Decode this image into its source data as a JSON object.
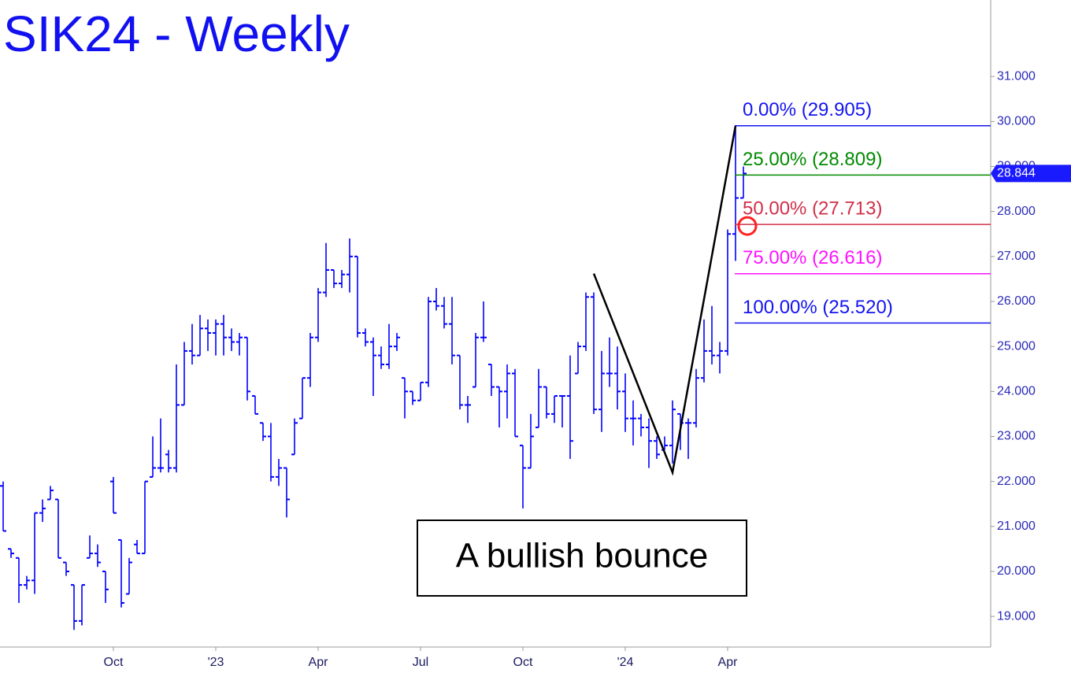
{
  "chart_data": {
    "type": "ohlc",
    "title": "SIK24 - Weekly",
    "annotation": "A bullish bounce",
    "color": "#0000ff",
    "categories": [
      null,
      null,
      null,
      null,
      null,
      null,
      null,
      null,
      null,
      null,
      null,
      null,
      null,
      null,
      "Oct",
      null,
      null,
      null,
      null,
      null,
      null,
      null,
      null,
      null,
      null,
      null,
      null,
      "'23",
      null,
      null,
      null,
      null,
      null,
      null,
      null,
      null,
      null,
      null,
      null,
      null,
      "Apr",
      null,
      null,
      null,
      null,
      null,
      null,
      null,
      null,
      null,
      null,
      null,
      null,
      "Jul",
      null,
      null,
      null,
      null,
      null,
      null,
      null,
      null,
      null,
      null,
      null,
      null,
      "Oct",
      null,
      null,
      null,
      null,
      null,
      null,
      null,
      null,
      null,
      null,
      null,
      null,
      "'24",
      null,
      null,
      null,
      null,
      null,
      null,
      null,
      null,
      null,
      null,
      null,
      null,
      "Apr",
      null,
      null
    ],
    "open": [
      21.9,
      20.5,
      20.3,
      19.7,
      19.8,
      21.3,
      21.6,
      21.6,
      20.2,
      19.7,
      18.9,
      20.3,
      20.4,
      20.0,
      22.0,
      20.7,
      19.5,
      20.6,
      20.4,
      22.1,
      22.3,
      22.6,
      22.3,
      23.7,
      24.9,
      24.8,
      25.4,
      25.3,
      25.5,
      25.2,
      25.1,
      25.2,
      23.9,
      23.3,
      23.0,
      22.1,
      22.3,
      22.6,
      23.4,
      24.3,
      25.2,
      26.2,
      26.7,
      26.4,
      26.6,
      27.0,
      25.3,
      25.1,
      24.8,
      24.6,
      25.0,
      24.3,
      24.0,
      23.8,
      24.2,
      26.0,
      25.9,
      25.5,
      24.8,
      23.7,
      24.1,
      25.2,
      24.6,
      24.1,
      24.0,
      24.4,
      22.8,
      22.3,
      23.2,
      24.1,
      23.5,
      23.9,
      23.9,
      24.4,
      25.0,
      26.1,
      23.6,
      24.4,
      24.4,
      24.0,
      23.4,
      23.4,
      23.2,
      22.9,
      22.7,
      22.8,
      23.5,
      23.3,
      23.3,
      24.3,
      24.9,
      24.8,
      24.9,
      27.5,
      28.3
    ],
    "high": [
      22.0,
      20.5,
      20.3,
      19.9,
      21.3,
      21.6,
      21.9,
      21.6,
      20.2,
      19.7,
      19.7,
      20.8,
      20.6,
      20.0,
      22.1,
      20.7,
      20.3,
      20.7,
      22.0,
      23.0,
      23.4,
      22.7,
      24.6,
      25.1,
      25.5,
      25.7,
      25.6,
      25.6,
      25.7,
      25.4,
      25.3,
      25.2,
      23.9,
      23.3,
      23.3,
      22.5,
      22.3,
      23.4,
      24.3,
      25.3,
      26.3,
      27.3,
      26.7,
      26.7,
      27.4,
      27.0,
      25.4,
      25.2,
      25.0,
      25.5,
      25.3,
      24.3,
      24.0,
      24.2,
      26.1,
      26.3,
      26.1,
      26.1,
      24.8,
      23.9,
      25.3,
      26.0,
      24.6,
      24.1,
      24.6,
      24.5,
      22.8,
      23.5,
      24.5,
      24.1,
      23.9,
      23.9,
      24.8,
      25.1,
      26.2,
      26.2,
      24.9,
      25.2,
      25.0,
      24.4,
      23.8,
      23.5,
      23.4,
      23.0,
      23.0,
      23.8,
      23.5,
      23.4,
      24.5,
      25.6,
      25.9,
      25.1,
      27.6,
      29.905,
      29.0
    ],
    "low": [
      20.9,
      20.3,
      19.3,
      19.6,
      19.5,
      21.1,
      21.6,
      20.3,
      19.9,
      18.7,
      18.8,
      20.3,
      20.1,
      19.3,
      21.3,
      19.2,
      19.5,
      20.4,
      20.4,
      22.1,
      22.2,
      22.2,
      22.2,
      23.7,
      24.6,
      24.8,
      24.9,
      24.8,
      24.8,
      24.9,
      24.8,
      23.8,
      23.5,
      22.9,
      22.0,
      21.9,
      21.2,
      22.6,
      23.4,
      24.1,
      25.1,
      26.1,
      26.3,
      26.3,
      26.2,
      25.2,
      25.0,
      23.9,
      24.5,
      24.5,
      24.9,
      23.4,
      23.7,
      23.8,
      24.1,
      25.8,
      25.4,
      24.6,
      23.6,
      23.3,
      24.1,
      25.1,
      23.9,
      23.2,
      23.4,
      23.0,
      21.4,
      22.3,
      23.2,
      23.4,
      23.3,
      23.2,
      22.5,
      24.4,
      24.9,
      23.5,
      23.1,
      24.1,
      23.6,
      23.1,
      22.8,
      23.0,
      22.3,
      22.5,
      22.7,
      22.4,
      22.7,
      22.5,
      23.2,
      24.2,
      24.6,
      24.4,
      24.8,
      26.9,
      28.3
    ],
    "close": [
      20.9,
      20.4,
      19.7,
      19.8,
      21.3,
      21.4,
      21.8,
      20.3,
      20.0,
      18.9,
      19.7,
      20.4,
      20.2,
      19.6,
      21.3,
      19.3,
      20.2,
      20.4,
      22.0,
      22.3,
      22.3,
      22.3,
      23.7,
      24.9,
      24.8,
      25.4,
      25.3,
      25.5,
      25.2,
      25.1,
      25.2,
      24.0,
      23.5,
      23.0,
      22.1,
      22.3,
      21.6,
      23.3,
      24.3,
      25.2,
      26.2,
      26.7,
      26.4,
      26.6,
      27.0,
      25.3,
      25.1,
      24.8,
      24.6,
      25.0,
      25.2,
      24.0,
      23.8,
      24.2,
      26.0,
      25.9,
      25.5,
      24.8,
      23.7,
      23.7,
      25.2,
      25.2,
      24.1,
      24.0,
      24.4,
      23.0,
      22.3,
      23.0,
      24.1,
      23.5,
      23.9,
      23.9,
      22.9,
      25.0,
      26.1,
      23.6,
      24.4,
      24.4,
      24.0,
      23.4,
      23.4,
      23.2,
      22.9,
      22.6,
      22.8,
      23.6,
      23.3,
      23.3,
      24.3,
      24.9,
      24.8,
      24.9,
      27.5,
      28.3,
      28.844
    ],
    "ylim": [
      18.32,
      32.7
    ],
    "yticks": [
      {
        "value": 19,
        "label": "19.000"
      },
      {
        "value": 20,
        "label": "20.000"
      },
      {
        "value": 21,
        "label": "21.000"
      },
      {
        "value": 22,
        "label": "22.000"
      },
      {
        "value": 23,
        "label": "23.000"
      },
      {
        "value": 24,
        "label": "24.000"
      },
      {
        "value": 25,
        "label": "25.000"
      },
      {
        "value": 26,
        "label": "26.000"
      },
      {
        "value": 27,
        "label": "27.000"
      },
      {
        "value": 28,
        "label": "28.000"
      },
      {
        "value": 29,
        "label": "29.000"
      },
      {
        "value": 30,
        "label": "30.000"
      },
      {
        "value": 31,
        "label": "31.000"
      }
    ],
    "fib_levels": [
      {
        "label": "0.00% (29.905)",
        "value": 29.905,
        "color": "#1414f0"
      },
      {
        "label": "25.00% (28.809)",
        "value": 28.809,
        "color": "#008a00"
      },
      {
        "label": "50.00% (27.713)",
        "value": 27.713,
        "color": "#d0304a"
      },
      {
        "label": "75.00% (26.616)",
        "value": 26.616,
        "color": "#ff10ff"
      },
      {
        "label": "100.00% (25.520)",
        "value": 25.52,
        "color": "#1414f0"
      }
    ],
    "pattern": {
      "x": [
        75,
        85,
        93
      ],
      "values": [
        26.62,
        22.2,
        29.905
      ],
      "color": "#000000"
    },
    "last_price": 28.844
  }
}
